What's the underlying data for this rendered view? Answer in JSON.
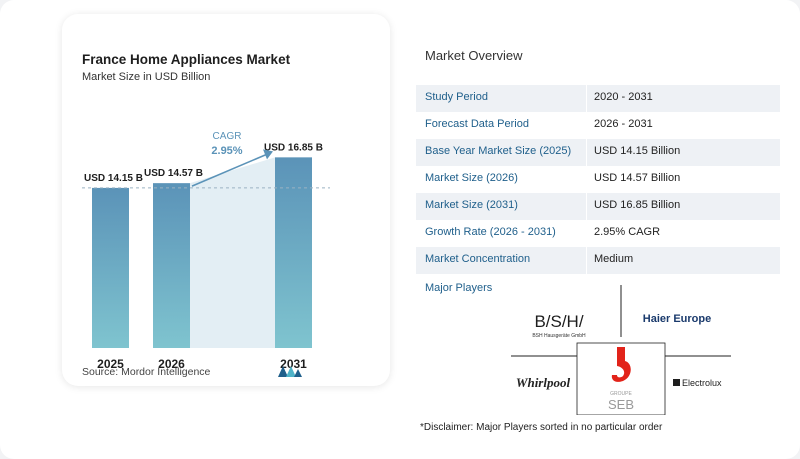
{
  "chart_data": {
    "type": "bar",
    "title": "France Home Appliances Market",
    "subtitle": "Market Size in USD Billion",
    "categories": [
      "2025",
      "2026",
      "2031"
    ],
    "values": [
      14.15,
      14.57,
      16.85
    ],
    "value_labels": [
      "USD 14.15 B",
      "USD 14.57 B",
      "USD 16.85 B"
    ],
    "cagr_label": "CAGR",
    "cagr_value": "2.95%",
    "ylim": [
      0,
      17.5
    ],
    "grid": false,
    "bar_color_top": "#5b93b8",
    "bar_color_bottom": "#7fc4cf"
  },
  "source": "Source:  Mordor Intelligence",
  "overview": {
    "title": "Market Overview",
    "rows": [
      {
        "label": "Study Period",
        "value": "2020 - 2031"
      },
      {
        "label": "Forecast Data Period",
        "value": "2026 - 2031"
      },
      {
        "label": "Base Year Market Size (2025)",
        "value": "USD 14.15 Billion"
      },
      {
        "label": "Market Size (2026)",
        "value": "USD 14.57 Billion"
      },
      {
        "label": "Market Size (2031)",
        "value": "USD 16.85 Billion"
      },
      {
        "label": "Growth Rate (2026 - 2031)",
        "value": "2.95% CAGR"
      },
      {
        "label": "Market Concentration",
        "value": "Medium"
      }
    ]
  },
  "players": {
    "title": "Major Players",
    "bsh": "B/S/H/",
    "bsh_sub": "BSH Hausgeräte GmbH",
    "haier": "Haier Europe",
    "whirlpool": "Whirlpool",
    "seb": "SEB",
    "seb_sub": "GROUPE",
    "electrolux": "Electrolux"
  },
  "disclaimer": "*Disclaimer: Major Players sorted in no particular order",
  "colors": {
    "accent": "#1f5f8b",
    "seb_red": "#e2231a"
  }
}
